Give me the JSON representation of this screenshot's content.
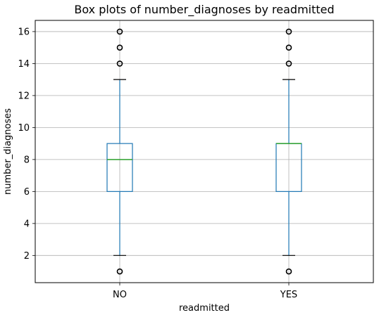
{
  "chart_data": {
    "type": "box",
    "title": "Box plots of number_diagnoses by readmitted",
    "xlabel": "readmitted",
    "ylabel": "number_diagnoses",
    "ylim": [
      0.3,
      16.7
    ],
    "yticks": [
      2,
      4,
      6,
      8,
      10,
      12,
      14,
      16
    ],
    "grid": true,
    "categories": [
      "NO",
      "YES"
    ],
    "boxes": [
      {
        "category": "NO",
        "q1": 6,
        "median": 8,
        "q3": 9,
        "whisker_low": 2,
        "whisker_high": 13,
        "outliers": [
          1,
          14,
          15,
          16
        ]
      },
      {
        "category": "YES",
        "q1": 6,
        "median": 9,
        "q3": 9,
        "whisker_low": 2,
        "whisker_high": 13,
        "outliers": [
          1,
          14,
          15,
          16
        ]
      }
    ],
    "colors": {
      "box": "#1f77b4",
      "median": "#2ca02c",
      "grid": "#b0b0b0",
      "outlier": "#000000"
    }
  }
}
